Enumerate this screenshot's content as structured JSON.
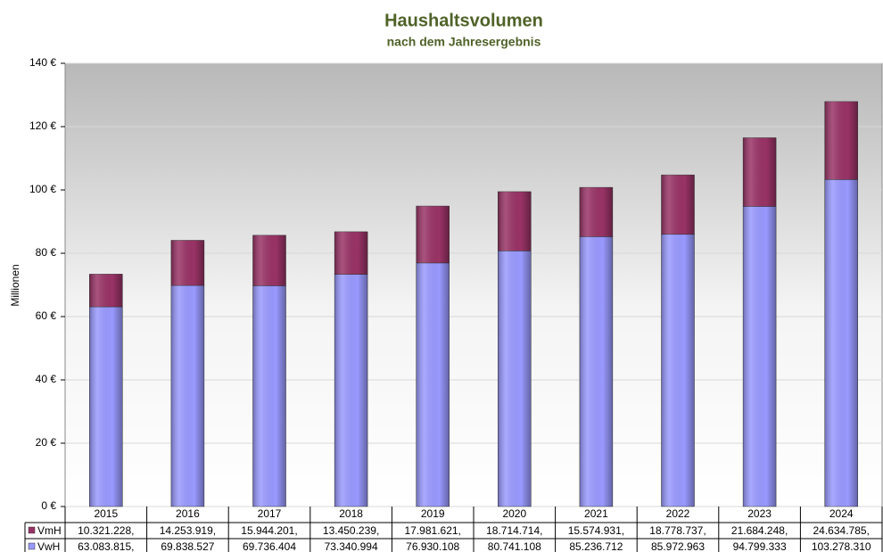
{
  "chart_data": {
    "type": "bar",
    "stacked": true,
    "title": "Haushaltsvolumen",
    "subtitle": "nach dem Jahresergebnis",
    "y_label": "Millionen",
    "categories": [
      "2015",
      "2016",
      "2017",
      "2018",
      "2019",
      "2020",
      "2021",
      "2022",
      "2023",
      "2024"
    ],
    "series": [
      {
        "name": "VmH",
        "color": "#993366",
        "values": [
          10.321228,
          14.253919,
          15.944201,
          13.450239,
          17.981621,
          18.714714,
          15.574931,
          18.778737,
          21.684248,
          24.634785
        ],
        "value_labels": [
          "10.321.228,",
          "14.253.919,",
          "15.944.201,",
          "13.450.239,",
          "17.981.621,",
          "18.714.714,",
          "15.574.931,",
          "18.778.737,",
          "21.684.248,",
          "24.634.785,"
        ]
      },
      {
        "name": "VwH",
        "color": "#9999ff",
        "values": [
          63.083815,
          69.838527,
          69.736404,
          73.340994,
          76.930108,
          80.741108,
          85.236712,
          85.972963,
          94.799333,
          103.27831
        ],
        "value_labels": [
          "63.083.815,",
          "69.838.527",
          "69.736.404",
          "73.340.994",
          "76.930.108",
          "80.741.108",
          "85.236.712",
          "85.972.963",
          "94.799.333",
          "103.278.310"
        ]
      }
    ],
    "ylim": [
      0,
      140
    ],
    "yticks": [
      {
        "value": 0,
        "label": "0 €"
      },
      {
        "value": 20,
        "label": "20 €"
      },
      {
        "value": 40,
        "label": "40 €"
      },
      {
        "value": 60,
        "label": "60 €"
      },
      {
        "value": 80,
        "label": "80 €"
      },
      {
        "value": 100,
        "label": "100 €"
      },
      {
        "value": 120,
        "label": "120 €"
      },
      {
        "value": 140,
        "label": "140 €"
      }
    ],
    "grid": true
  }
}
